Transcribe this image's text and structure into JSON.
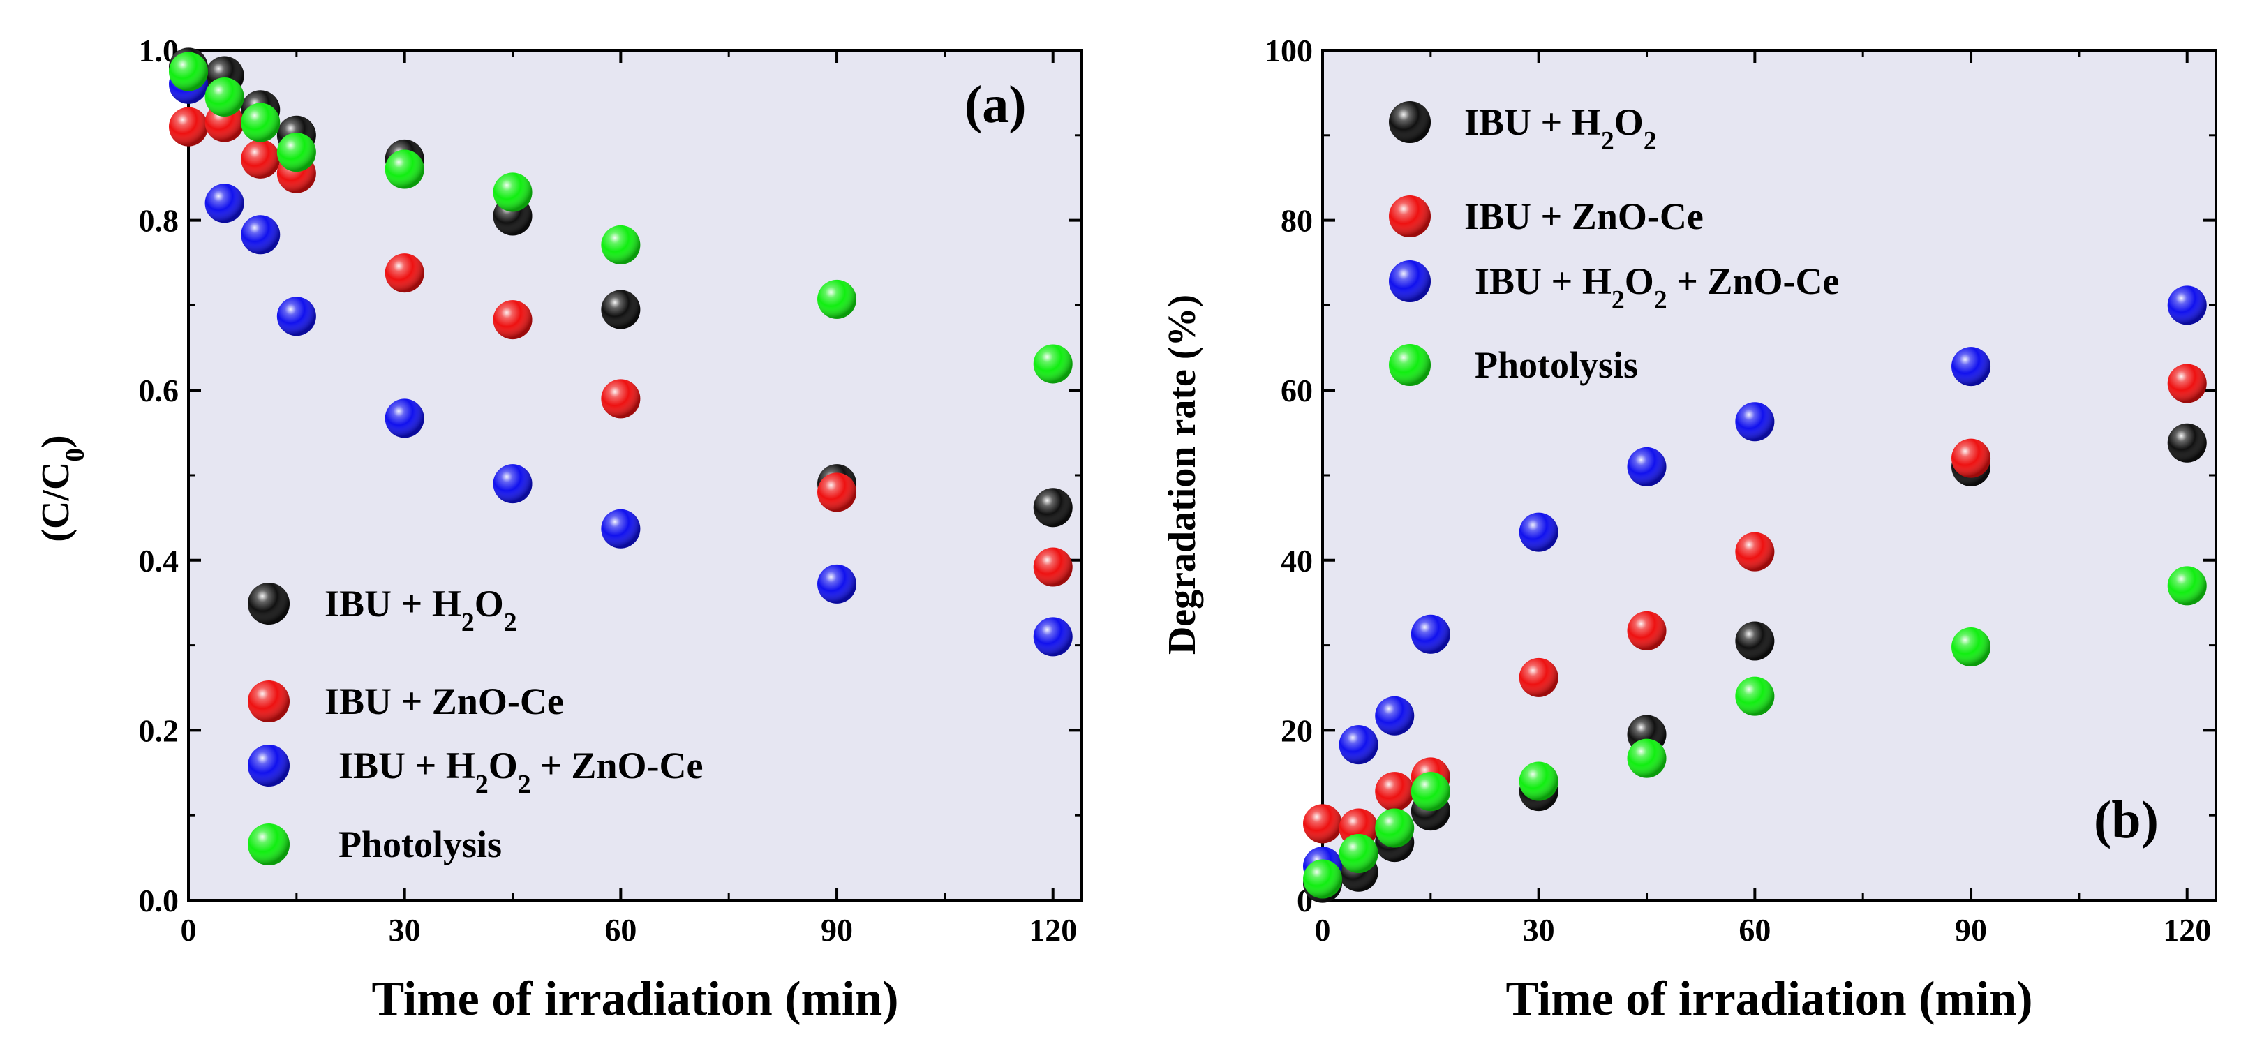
{
  "colors": {
    "plot_bg": "#e6e6f2",
    "IBU + H2O2": "#111111",
    "IBU + ZnO-Ce": "#ee1111",
    "IBU + H2O2 + ZnO-Ce": "#1111ee",
    "Photolysis": "#11ee11"
  },
  "chart_data": [
    {
      "type": "scatter",
      "panel_label": "(a)",
      "xlabel": "Time of irradiation (min)",
      "ylabel": "(C/C0)",
      "xlim": [
        0,
        124
      ],
      "ylim": [
        0,
        1.0
      ],
      "xticks": [
        0,
        30,
        60,
        90,
        120
      ],
      "yticks": [
        0.0,
        0.2,
        0.4,
        0.6,
        0.8,
        1.0
      ],
      "ytick_labels": [
        "0.0",
        "0.2",
        "0.4",
        "0.6",
        "0.8",
        "1.0"
      ],
      "legend_position": "bottom-left",
      "series": [
        {
          "name": "IBU + H2O2",
          "color_key": "IBU + H2O2",
          "x": [
            0,
            5,
            10,
            15,
            30,
            45,
            60,
            90,
            120
          ],
          "y": [
            0.98,
            0.97,
            0.93,
            0.9,
            0.872,
            0.805,
            0.695,
            0.49,
            0.462
          ]
        },
        {
          "name": "IBU + ZnO-Ce",
          "color_key": "IBU + ZnO-Ce",
          "x": [
            0,
            5,
            10,
            15,
            30,
            45,
            60,
            90,
            120
          ],
          "y": [
            0.91,
            0.915,
            0.872,
            0.855,
            0.738,
            0.683,
            0.59,
            0.48,
            0.392
          ]
        },
        {
          "name": "IBU + H2O2 + ZnO-Ce",
          "color_key": "IBU + H2O2 + ZnO-Ce",
          "x": [
            0,
            5,
            10,
            15,
            30,
            45,
            60,
            90,
            120
          ],
          "y": [
            0.96,
            0.82,
            0.783,
            0.687,
            0.567,
            0.49,
            0.437,
            0.372,
            0.31
          ]
        },
        {
          "name": "Photolysis",
          "color_key": "Photolysis",
          "x": [
            0,
            5,
            10,
            15,
            30,
            45,
            60,
            90,
            120
          ],
          "y": [
            0.975,
            0.945,
            0.915,
            0.88,
            0.86,
            0.833,
            0.771,
            0.707,
            0.631
          ]
        }
      ]
    },
    {
      "type": "scatter",
      "panel_label": "(b)",
      "xlabel": "Time of irradiation (min)",
      "ylabel": "Degradation rate  (%)",
      "xlim": [
        0,
        124
      ],
      "ylim": [
        0,
        100
      ],
      "xticks": [
        0,
        30,
        60,
        90,
        120
      ],
      "yticks": [
        0,
        20,
        40,
        60,
        80,
        100
      ],
      "ytick_labels": [
        "0",
        "20",
        "40",
        "60",
        "80",
        "100"
      ],
      "legend_position": "top-left",
      "series": [
        {
          "name": "IBU + H2O2",
          "color_key": "IBU + H2O2",
          "x": [
            0,
            5,
            10,
            15,
            30,
            45,
            60,
            90,
            120
          ],
          "y": [
            2,
            3.3,
            6.8,
            10.5,
            12.8,
            19.5,
            30.5,
            51,
            53.8
          ]
        },
        {
          "name": "IBU + ZnO-Ce",
          "color_key": "IBU + ZnO-Ce",
          "x": [
            0,
            5,
            10,
            15,
            30,
            45,
            60,
            90,
            120
          ],
          "y": [
            9,
            8.5,
            12.8,
            14.5,
            26.2,
            31.7,
            41,
            52,
            60.8
          ]
        },
        {
          "name": "IBU + H2O2 + ZnO-Ce",
          "color_key": "IBU + H2O2 + ZnO-Ce",
          "x": [
            0,
            5,
            10,
            15,
            30,
            45,
            60,
            90,
            120
          ],
          "y": [
            4,
            18.3,
            21.7,
            31.3,
            43.3,
            51,
            56.3,
            62.8,
            70
          ]
        },
        {
          "name": "Photolysis",
          "color_key": "Photolysis",
          "x": [
            0,
            5,
            10,
            15,
            30,
            45,
            60,
            90,
            120
          ],
          "y": [
            2.5,
            5.5,
            8.5,
            12.8,
            14,
            16.7,
            24,
            29.8,
            37
          ]
        }
      ]
    }
  ]
}
